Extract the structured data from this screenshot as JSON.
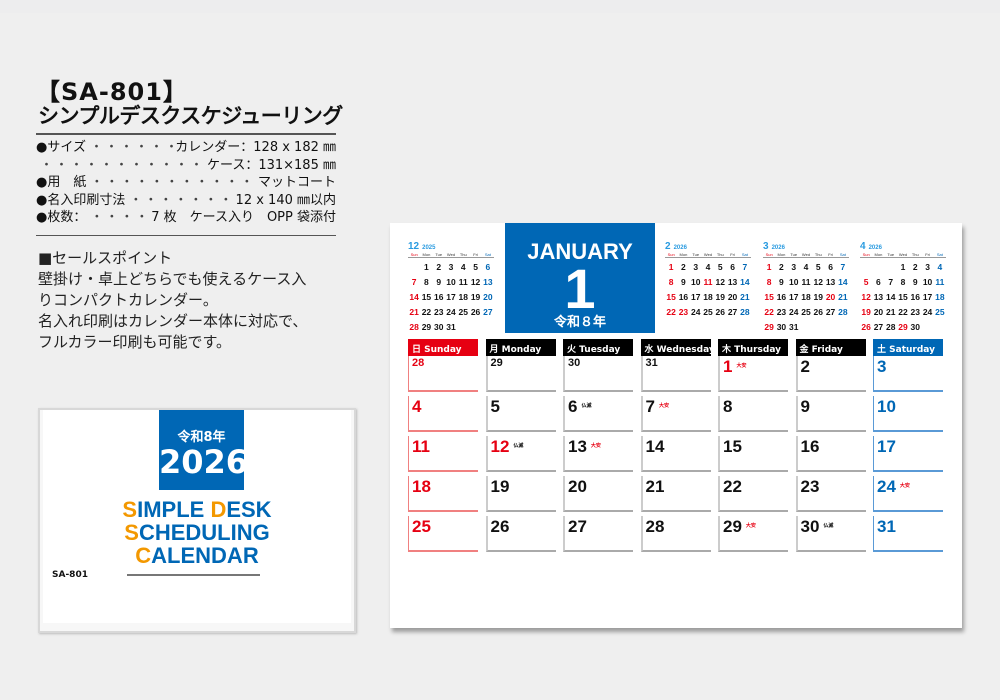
{
  "product": {
    "code_title": "【SA-801】",
    "name": "シンプルデスクスケジューリング",
    "specs": [
      {
        "label": "●サイズ",
        "value": "カレンダー：128 x 182 ㎜"
      },
      {
        "label": "",
        "value": "ケース：131×185 ㎜"
      },
      {
        "label": "●用　紙",
        "value": "マットコート"
      },
      {
        "label": "●名入印刷寸法",
        "value": "12 x 140 ㎜以内"
      },
      {
        "label": "●枚数：",
        "value": "7 枚　ケース入り　OPP 袋添付"
      }
    ],
    "sales_point": [
      "■セールスポイント",
      "壁掛け・卓上どちらでも使えるケース入",
      "りコンパクトカレンダー。",
      "名入れ印刷はカレンダー本体に対応で、",
      "フルカラー印刷も可能です。"
    ]
  },
  "cover": {
    "era": "令和8年",
    "year": "2026",
    "logo_lines": [
      [
        "S",
        "IMPLE ",
        "D",
        "ESK"
      ],
      [
        "S",
        "CHEDULING",
        "",
        " "
      ],
      [
        "C",
        "ALENDAR",
        "",
        ""
      ]
    ],
    "code": "SA-801"
  },
  "colors": {
    "blue": "#0067b5",
    "red": "#e60012",
    "orange": "#f39800"
  },
  "calendar": {
    "month_en": "JANUARY",
    "month_num": "1",
    "era": "令和８年",
    "weekday_headers": [
      "日 Sunday",
      "月 Monday",
      "火 Tuesday",
      "水 Wednesday",
      "木 Thursday",
      "金 Friday",
      "土 Saturday"
    ],
    "mini_weekdays": [
      "Sun",
      "Mon",
      "Tue",
      "Wed",
      "Thu",
      "Fri",
      "Sat"
    ],
    "minis": [
      {
        "month": "12",
        "year": "2025",
        "start": 1,
        "days": 31,
        "holidays": []
      },
      {
        "month": "2",
        "year": "2026",
        "start": 0,
        "days": 28,
        "holidays": [
          11,
          23
        ]
      },
      {
        "month": "3",
        "year": "2026",
        "start": 0,
        "days": 31,
        "holidays": [
          20
        ]
      },
      {
        "month": "4",
        "year": "2026",
        "start": 3,
        "days": 30,
        "holidays": [
          29
        ]
      }
    ],
    "weeks": [
      [
        {
          "d": "28",
          "prev": true
        },
        {
          "d": "29",
          "prev": true
        },
        {
          "d": "30",
          "prev": true
        },
        {
          "d": "31",
          "prev": true
        },
        {
          "d": "1",
          "holiday": true,
          "rokuyo": "大安"
        },
        {
          "d": "2"
        },
        {
          "d": "3"
        }
      ],
      [
        {
          "d": "4"
        },
        {
          "d": "5"
        },
        {
          "d": "6",
          "rokuyo": "仏滅"
        },
        {
          "d": "7",
          "rokuyo": "大安"
        },
        {
          "d": "8"
        },
        {
          "d": "9"
        },
        {
          "d": "10"
        }
      ],
      [
        {
          "d": "11"
        },
        {
          "d": "12",
          "holiday": true,
          "rokuyo": "仏滅"
        },
        {
          "d": "13",
          "rokuyo": "大安"
        },
        {
          "d": "14"
        },
        {
          "d": "15"
        },
        {
          "d": "16"
        },
        {
          "d": "17"
        }
      ],
      [
        {
          "d": "18"
        },
        {
          "d": "19"
        },
        {
          "d": "20"
        },
        {
          "d": "21"
        },
        {
          "d": "22"
        },
        {
          "d": "23"
        },
        {
          "d": "24",
          "rokuyo": "大安"
        }
      ],
      [
        {
          "d": "25"
        },
        {
          "d": "26"
        },
        {
          "d": "27"
        },
        {
          "d": "28"
        },
        {
          "d": "29",
          "rokuyo": "大安"
        },
        {
          "d": "30",
          "rokuyo": "仏滅"
        },
        {
          "d": "31"
        }
      ]
    ]
  }
}
